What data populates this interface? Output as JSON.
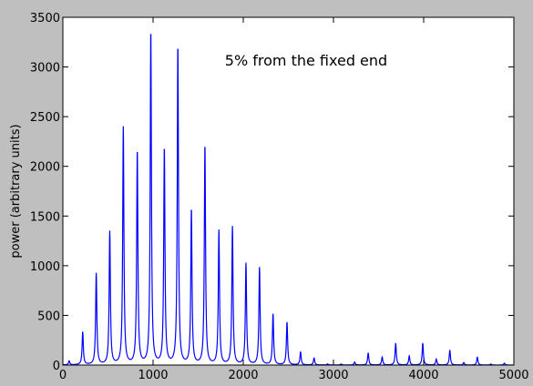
{
  "figure": {
    "background": "#bfbfbf",
    "axes_background": "#ffffff"
  },
  "chart_data": {
    "type": "line",
    "annotation": "5% from the fixed end",
    "xlabel": "",
    "ylabel": "power (arbitrary units)",
    "xlim": [
      0,
      5000
    ],
    "ylim": [
      0,
      3500
    ],
    "xticks": [
      0,
      1000,
      2000,
      3000,
      4000,
      5000
    ],
    "yticks": [
      0,
      500,
      1000,
      1500,
      2000,
      2500,
      3000,
      3500
    ],
    "grid": false,
    "series": [
      {
        "color": "#0000ff",
        "peaks": [
          {
            "x": 70,
            "y": 40
          },
          {
            "x": 220,
            "y": 330
          },
          {
            "x": 370,
            "y": 920
          },
          {
            "x": 520,
            "y": 1340
          },
          {
            "x": 670,
            "y": 2390
          },
          {
            "x": 825,
            "y": 2150
          },
          {
            "x": 975,
            "y": 3360
          },
          {
            "x": 1125,
            "y": 2180
          },
          {
            "x": 1275,
            "y": 3210
          },
          {
            "x": 1425,
            "y": 1560
          },
          {
            "x": 1575,
            "y": 2210
          },
          {
            "x": 1730,
            "y": 1350
          },
          {
            "x": 1880,
            "y": 1390
          },
          {
            "x": 2030,
            "y": 1020
          },
          {
            "x": 2180,
            "y": 980
          },
          {
            "x": 2330,
            "y": 510
          },
          {
            "x": 2485,
            "y": 430
          },
          {
            "x": 2635,
            "y": 130
          },
          {
            "x": 2785,
            "y": 70
          },
          {
            "x": 2935,
            "y": 10
          },
          {
            "x": 3085,
            "y": 10
          },
          {
            "x": 3235,
            "y": 30
          },
          {
            "x": 3385,
            "y": 120
          },
          {
            "x": 3540,
            "y": 80
          },
          {
            "x": 3690,
            "y": 220
          },
          {
            "x": 3840,
            "y": 90
          },
          {
            "x": 3990,
            "y": 220
          },
          {
            "x": 4140,
            "y": 60
          },
          {
            "x": 4290,
            "y": 150
          },
          {
            "x": 4445,
            "y": 25
          },
          {
            "x": 4595,
            "y": 80
          },
          {
            "x": 4745,
            "y": 10
          },
          {
            "x": 4895,
            "y": 20
          }
        ]
      }
    ]
  }
}
